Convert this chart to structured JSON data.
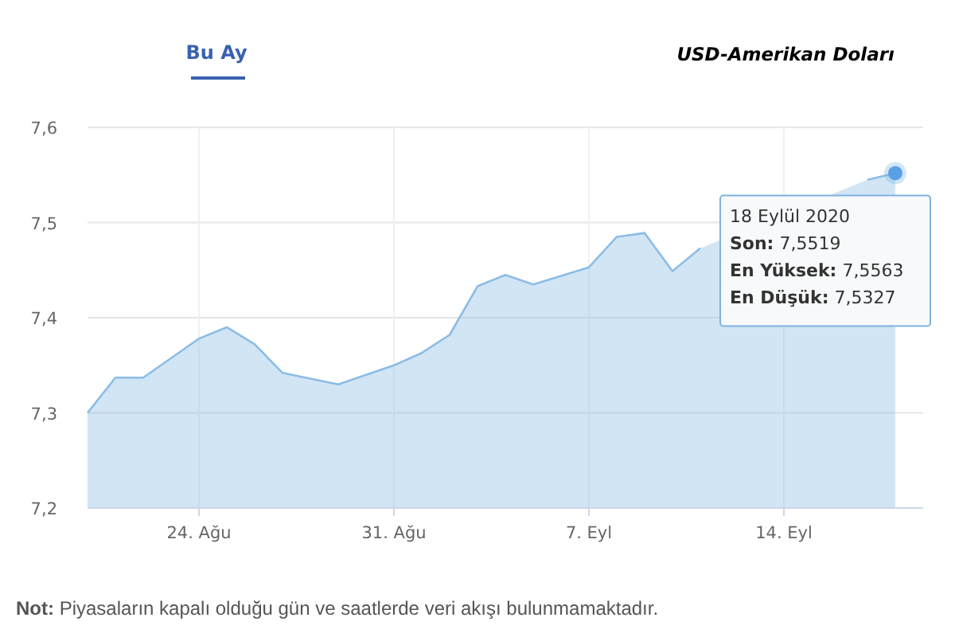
{
  "chart_data": {
    "type": "area",
    "title": "USD-Amerikan Doları",
    "subtitle": "Bu Ay",
    "x": [
      "2020-08-20",
      "2020-08-21",
      "2020-08-22",
      "2020-08-24",
      "2020-08-25",
      "2020-08-26",
      "2020-08-27",
      "2020-08-29",
      "2020-08-31",
      "2020-09-01",
      "2020-09-02",
      "2020-09-03",
      "2020-09-04",
      "2020-09-05",
      "2020-09-07",
      "2020-09-08",
      "2020-09-09",
      "2020-09-10",
      "2020-09-11",
      "2020-09-12",
      "2020-09-13",
      "2020-09-14",
      "2020-09-15",
      "2020-09-16",
      "2020-09-17",
      "2020-09-18"
    ],
    "series": [
      {
        "color": "#8cbde6",
        "values": [
          7.3,
          7.337,
          7.337,
          7.378,
          7.39,
          7.372,
          7.342,
          7.33,
          7.35,
          7.363,
          7.382,
          7.433,
          7.445,
          7.435,
          7.453,
          7.485,
          7.489,
          7.449,
          7.473,
          null,
          null,
          null,
          null,
          null,
          7.545,
          7.5519
        ]
      }
    ],
    "xlim": [
      "2020-08-20",
      "2020-09-19"
    ],
    "ylim": [
      7.2,
      7.6
    ],
    "xticks": [
      {
        "value": "2020-08-24",
        "label": "24. Ağu"
      },
      {
        "value": "2020-08-31",
        "label": "31. Ağu"
      },
      {
        "value": "2020-09-07",
        "label": "7. Eyl"
      },
      {
        "value": "2020-09-14",
        "label": "14. Eyl"
      }
    ],
    "yticks": [
      {
        "value": 7.2,
        "label": "7,2"
      },
      {
        "value": 7.3,
        "label": "7,3"
      },
      {
        "value": 7.4,
        "label": "7,4"
      },
      {
        "value": 7.5,
        "label": "7,5"
      },
      {
        "value": 7.6,
        "label": "7,6"
      }
    ],
    "grid": true,
    "annotations": [
      {
        "text": "18 Eylül 2020\nSon: 7,5519\nEn Yüksek: 7,5563\nEn Düşük: 7,5327",
        "x": "2020-09-18",
        "y": 7.5519
      },
      "Not: Piyasaların kapalı olduğu gün ve saatlerde veri akışı bulunmamaktadır."
    ]
  }
}
